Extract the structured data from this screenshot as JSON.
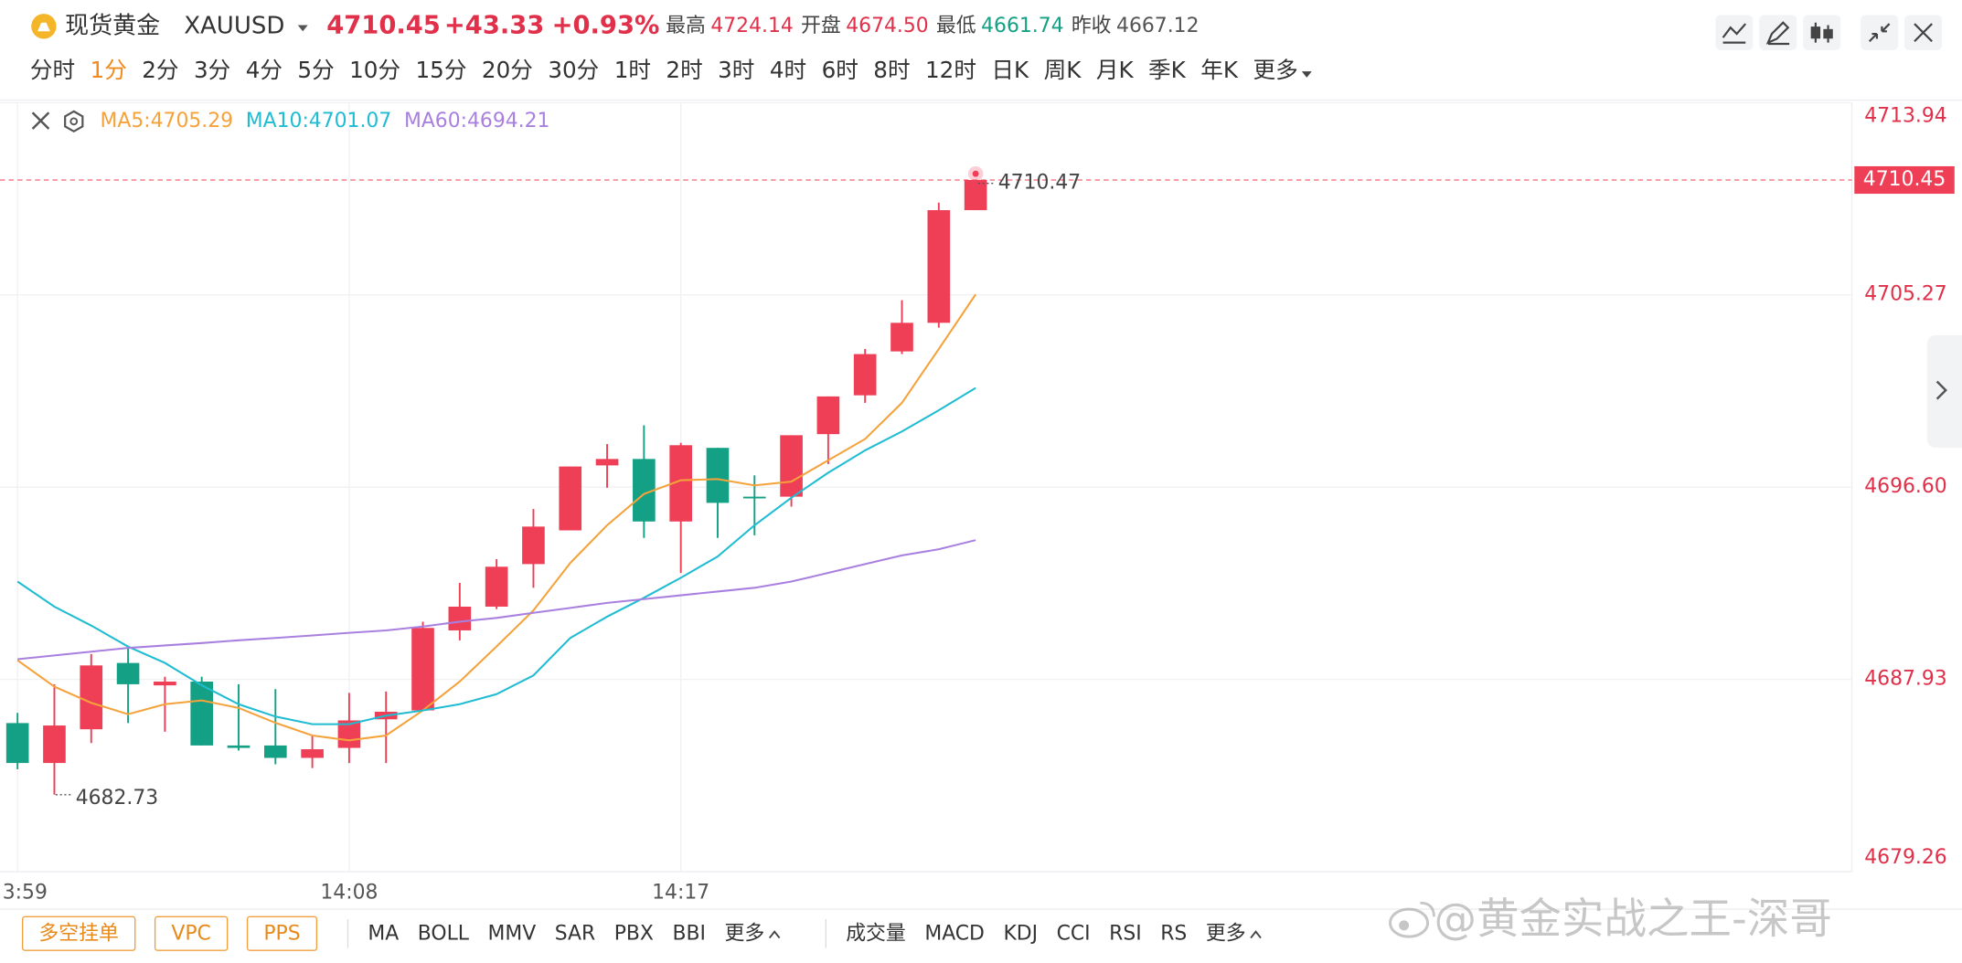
{
  "header": {
    "symbol_name": "现货黄金",
    "symbol": "XAUUSD",
    "price": "4710.45",
    "change": "+43.33",
    "change_pct": "+0.93%",
    "stats": [
      {
        "label": "最高",
        "value": "4724.14",
        "color": "#e0304a"
      },
      {
        "label": "开盘",
        "value": "4674.50",
        "color": "#e0304a"
      },
      {
        "label": "最低",
        "value": "4661.74",
        "color": "#14a085"
      },
      {
        "label": "昨收",
        "value": "4667.12",
        "color": "#555555"
      }
    ]
  },
  "timeframes": {
    "items": [
      "分时",
      "1分",
      "2分",
      "3分",
      "4分",
      "5分",
      "10分",
      "15分",
      "20分",
      "30分",
      "1时",
      "2时",
      "3时",
      "4时",
      "6时",
      "8时",
      "12时",
      "日K",
      "周K",
      "月K",
      "季K",
      "年K"
    ],
    "more": "更多",
    "active": 1
  },
  "chart_data": {
    "type": "candlestick",
    "categories": [
      "3:59",
      null,
      null,
      null,
      null,
      null,
      null,
      null,
      null,
      "14:08",
      null,
      null,
      null,
      null,
      null,
      null,
      null,
      null,
      "14:17",
      null,
      null,
      null,
      null,
      null,
      null,
      null,
      null
    ],
    "open": [
      4685.96,
      4684.16,
      4685.68,
      4688.67,
      4687.66,
      4687.83,
      4684.95,
      4684.95,
      4684.39,
      4684.84,
      4686.13,
      4686.53,
      4690.14,
      4691.21,
      4693.13,
      4694.65,
      4697.58,
      4697.87,
      4695.05,
      4698.37,
      4696.17,
      4696.17,
      4698.99,
      4700.74,
      4702.72,
      4704.01,
      4709.09
    ],
    "high": [
      4686.42,
      4687.71,
      4689.07,
      4689.41,
      4688.05,
      4688.05,
      4687.71,
      4687.49,
      4685.4,
      4687.32,
      4687.38,
      4690.53,
      4692.28,
      4693.35,
      4695.61,
      4697.53,
      4698.54,
      4699.39,
      4698.6,
      4698.37,
      4697.13,
      4698.94,
      4700.69,
      4702.83,
      4705.03,
      4709.43,
      4710.47
    ],
    "low": [
      4683.88,
      4682.73,
      4685.06,
      4685.96,
      4685.57,
      4684.95,
      4684.72,
      4684.1,
      4683.93,
      4684.16,
      4684.16,
      4686.53,
      4689.69,
      4691.1,
      4692.06,
      4694.65,
      4696.57,
      4694.31,
      4692.73,
      4694.31,
      4694.43,
      4695.72,
      4697.64,
      4700.4,
      4702.6,
      4703.79,
      4709.09
    ],
    "close": [
      4684.16,
      4685.85,
      4688.56,
      4687.71,
      4687.83,
      4684.95,
      4684.84,
      4684.39,
      4684.78,
      4686.08,
      4686.47,
      4690.25,
      4691.21,
      4693.01,
      4694.82,
      4697.53,
      4697.87,
      4695.05,
      4698.49,
      4695.89,
      4696.12,
      4698.94,
      4700.69,
      4702.6,
      4704.01,
      4709.09,
      4710.45
    ],
    "up_color": "#ee3f56",
    "down_color": "#14a085",
    "series": [
      {
        "name": "MA5:4705.29",
        "color": "#f5a23b",
        "values": [
          4688.79,
          4687.6,
          4686.87,
          4686.36,
          4686.81,
          4686.98,
          4686.64,
          4685.97,
          4685.4,
          4685.18,
          4685.4,
          4686.53,
          4687.83,
          4689.41,
          4691.04,
          4693.18,
          4694.88,
          4696.29,
          4696.91,
          4696.96,
          4696.68,
          4696.85,
          4697.81,
          4698.77,
          4700.4,
          4702.83,
          4705.29
        ]
      },
      {
        "name": "MA10:4701.07",
        "color": "#1fbcd2",
        "values": [
          4692.34,
          4691.21,
          4690.36,
          4689.41,
          4688.67,
          4687.66,
          4686.81,
          4686.25,
          4685.91,
          4685.91,
          4686.3,
          4686.53,
          4686.81,
          4687.26,
          4688.11,
          4689.8,
          4690.76,
          4691.61,
          4692.51,
          4693.47,
          4694.88,
          4696.12,
          4697.25,
          4698.26,
          4699.11,
          4700.07,
          4701.07
        ]
      },
      {
        "name": "MA60:4694.21",
        "color": "#a980e0",
        "values": [
          4688.84,
          4689.01,
          4689.18,
          4689.35,
          4689.46,
          4689.57,
          4689.69,
          4689.8,
          4689.91,
          4690.03,
          4690.14,
          4690.31,
          4690.53,
          4690.7,
          4690.93,
          4691.15,
          4691.38,
          4691.55,
          4691.72,
          4691.89,
          4692.06,
          4692.34,
          4692.73,
          4693.13,
          4693.52,
          4693.8,
          4694.21
        ]
      }
    ],
    "ylim": [
      4679.26,
      4713.94
    ],
    "yticks": [
      4679.26,
      4687.93,
      {
        "value": 4696.6,
        "label": "4696.60"
      },
      4705.27,
      4713.94
    ],
    "grid": true,
    "last_price": 4710.45,
    "high_label": "4710.47",
    "low_label": "4682.73"
  },
  "bottom_bar": {
    "buttons": [
      "多空挂单",
      "VPC",
      "PPS"
    ],
    "main_indicators": [
      "MA",
      "BOLL",
      "MMV",
      "SAR",
      "PBX",
      "BBI"
    ],
    "sub_indicators": [
      "成交量",
      "MACD",
      "KDJ",
      "CCI",
      "RSI",
      "RS"
    ],
    "more": "更多"
  },
  "watermark": "@黄金实战之王-深哥"
}
